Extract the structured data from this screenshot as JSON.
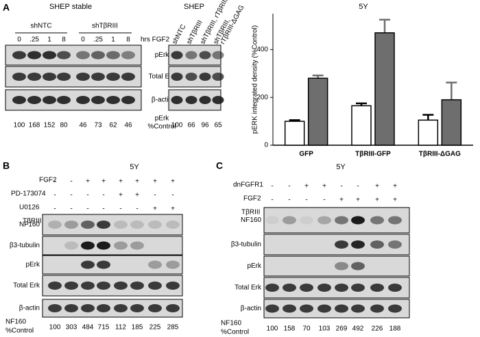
{
  "panel_a": {
    "label": "A",
    "left": {
      "title": "SHEP stable",
      "groups": [
        "shNTC",
        "shTβRIII"
      ],
      "lanes": [
        "0",
        ".25",
        "1",
        "8",
        "0",
        ".25",
        "1",
        "8"
      ],
      "lane_caption": "hrs FGF2",
      "rows": [
        "pErk",
        "Total Erk",
        "β-actin"
      ],
      "quant_label": [
        "pErk",
        "%Control"
      ],
      "quant": [
        100,
        168,
        152,
        80,
        46,
        73,
        62,
        46
      ]
    },
    "middle": {
      "title": "SHEP",
      "lanes": [
        [
          "shNTC"
        ],
        [
          "shTβRIII"
        ],
        [
          "shTβRIII, rTβRIII"
        ],
        [
          "shTβRIII,",
          "rTβRIII-ΔGAG"
        ]
      ],
      "quant": [
        100,
        66,
        96,
        65
      ]
    }
  },
  "chart_data": {
    "type": "bar",
    "title": "5Y",
    "y_label": "pERK integrated density (%Control)",
    "categories": [
      "GFP",
      "TβRIII-GFP",
      "TβRIII-ΔGAG"
    ],
    "series": [
      {
        "color": "#ffffff",
        "values": [
          100,
          165,
          105
        ],
        "errors": [
          5,
          10,
          22
        ]
      },
      {
        "color": "#6e6e6e",
        "values": [
          280,
          470,
          190
        ],
        "errors": [
          12,
          55,
          72
        ]
      }
    ],
    "ylim": [
      0,
      550
    ],
    "yticks": [
      0,
      200,
      400
    ]
  },
  "panel_b": {
    "label": "B",
    "title": "5Y",
    "conditions": [
      {
        "name": "FGF2",
        "signs": [
          "-",
          "-",
          "+",
          "+",
          "+",
          "+",
          "+",
          "+"
        ]
      },
      {
        "name": "PD-173074",
        "signs": [
          "-",
          "-",
          "-",
          "-",
          "+",
          "+",
          "-",
          "-"
        ]
      },
      {
        "name": "U0126",
        "signs": [
          "-",
          "-",
          "-",
          "-",
          "-",
          "-",
          "+",
          "+"
        ]
      },
      {
        "name": "TβRIII",
        "signs": [
          "-",
          "+",
          "-",
          "+",
          "-",
          "+",
          "-",
          "+"
        ]
      }
    ],
    "rows": [
      "NF160",
      "β3-tubulin",
      "pErk",
      "Total Erk",
      "β-actin"
    ],
    "quant_label": [
      "NF160",
      "%Control"
    ],
    "quant": [
      100,
      303,
      484,
      715,
      112,
      185,
      225,
      285
    ]
  },
  "panel_c": {
    "label": "C",
    "title": "5Y",
    "conditions": [
      {
        "name": "dnFGFR1",
        "signs": [
          "-",
          "-",
          "+",
          "+",
          "-",
          "-",
          "+",
          "+"
        ]
      },
      {
        "name": "FGF2",
        "signs": [
          "-",
          "-",
          "-",
          "-",
          "+",
          "+",
          "+",
          "+"
        ]
      },
      {
        "name": "TβRIII",
        "signs": [
          "-",
          "+",
          "-",
          "+",
          "-",
          "+",
          "-",
          "+"
        ]
      }
    ],
    "rows": [
      "NF160",
      "β3-tubulin",
      "pErk",
      "Total Erk",
      "β-actin"
    ],
    "quant_label": [
      "NF160",
      "%Control"
    ],
    "quant": [
      100,
      158,
      70,
      103,
      269,
      492,
      226,
      188
    ]
  }
}
